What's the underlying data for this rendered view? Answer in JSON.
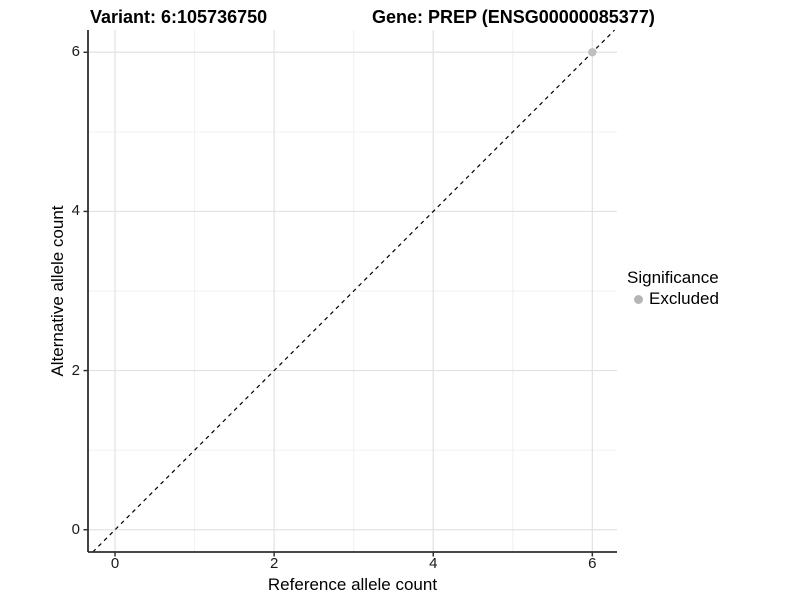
{
  "header": {
    "variant_title": "Variant: 6:105736750",
    "gene_title": "Gene: PREP (ENSG00000085377)"
  },
  "chart_data": {
    "type": "scatter",
    "title_left": "Variant: 6:105736750",
    "title_right": "Gene: PREP (ENSG00000085377)",
    "xlabel": "Reference allele count",
    "ylabel": "Alternative allele count",
    "xlim": [
      -0.34,
      6.31
    ],
    "ylim": [
      -0.28,
      6.28
    ],
    "x_ticks": [
      0,
      2,
      4,
      6
    ],
    "y_ticks": [
      0,
      2,
      4,
      6
    ],
    "x_minor_ticks": [
      1,
      3,
      5
    ],
    "y_minor_ticks": [
      1,
      3,
      5
    ],
    "grid": true,
    "points": [
      {
        "x": 6,
        "y": 6,
        "series": "Excluded"
      }
    ],
    "reference_line": {
      "kind": "identity",
      "slope": 1,
      "intercept": 0,
      "style": "dashed"
    },
    "legend": {
      "title": "Significance",
      "position": "right",
      "items": [
        {
          "label": "Excluded",
          "color": "#b5b5b5",
          "marker": "circle"
        }
      ]
    },
    "colors": {
      "point": "#bfbfbf",
      "grid_major": "#e2e2e2",
      "grid_minor": "#f0f0f0",
      "axis_line": "#2e2e2e",
      "tick_mark": "#333333",
      "reference_line": "#000000",
      "tick_text": "#1a1a1a",
      "background": "#ffffff"
    }
  }
}
